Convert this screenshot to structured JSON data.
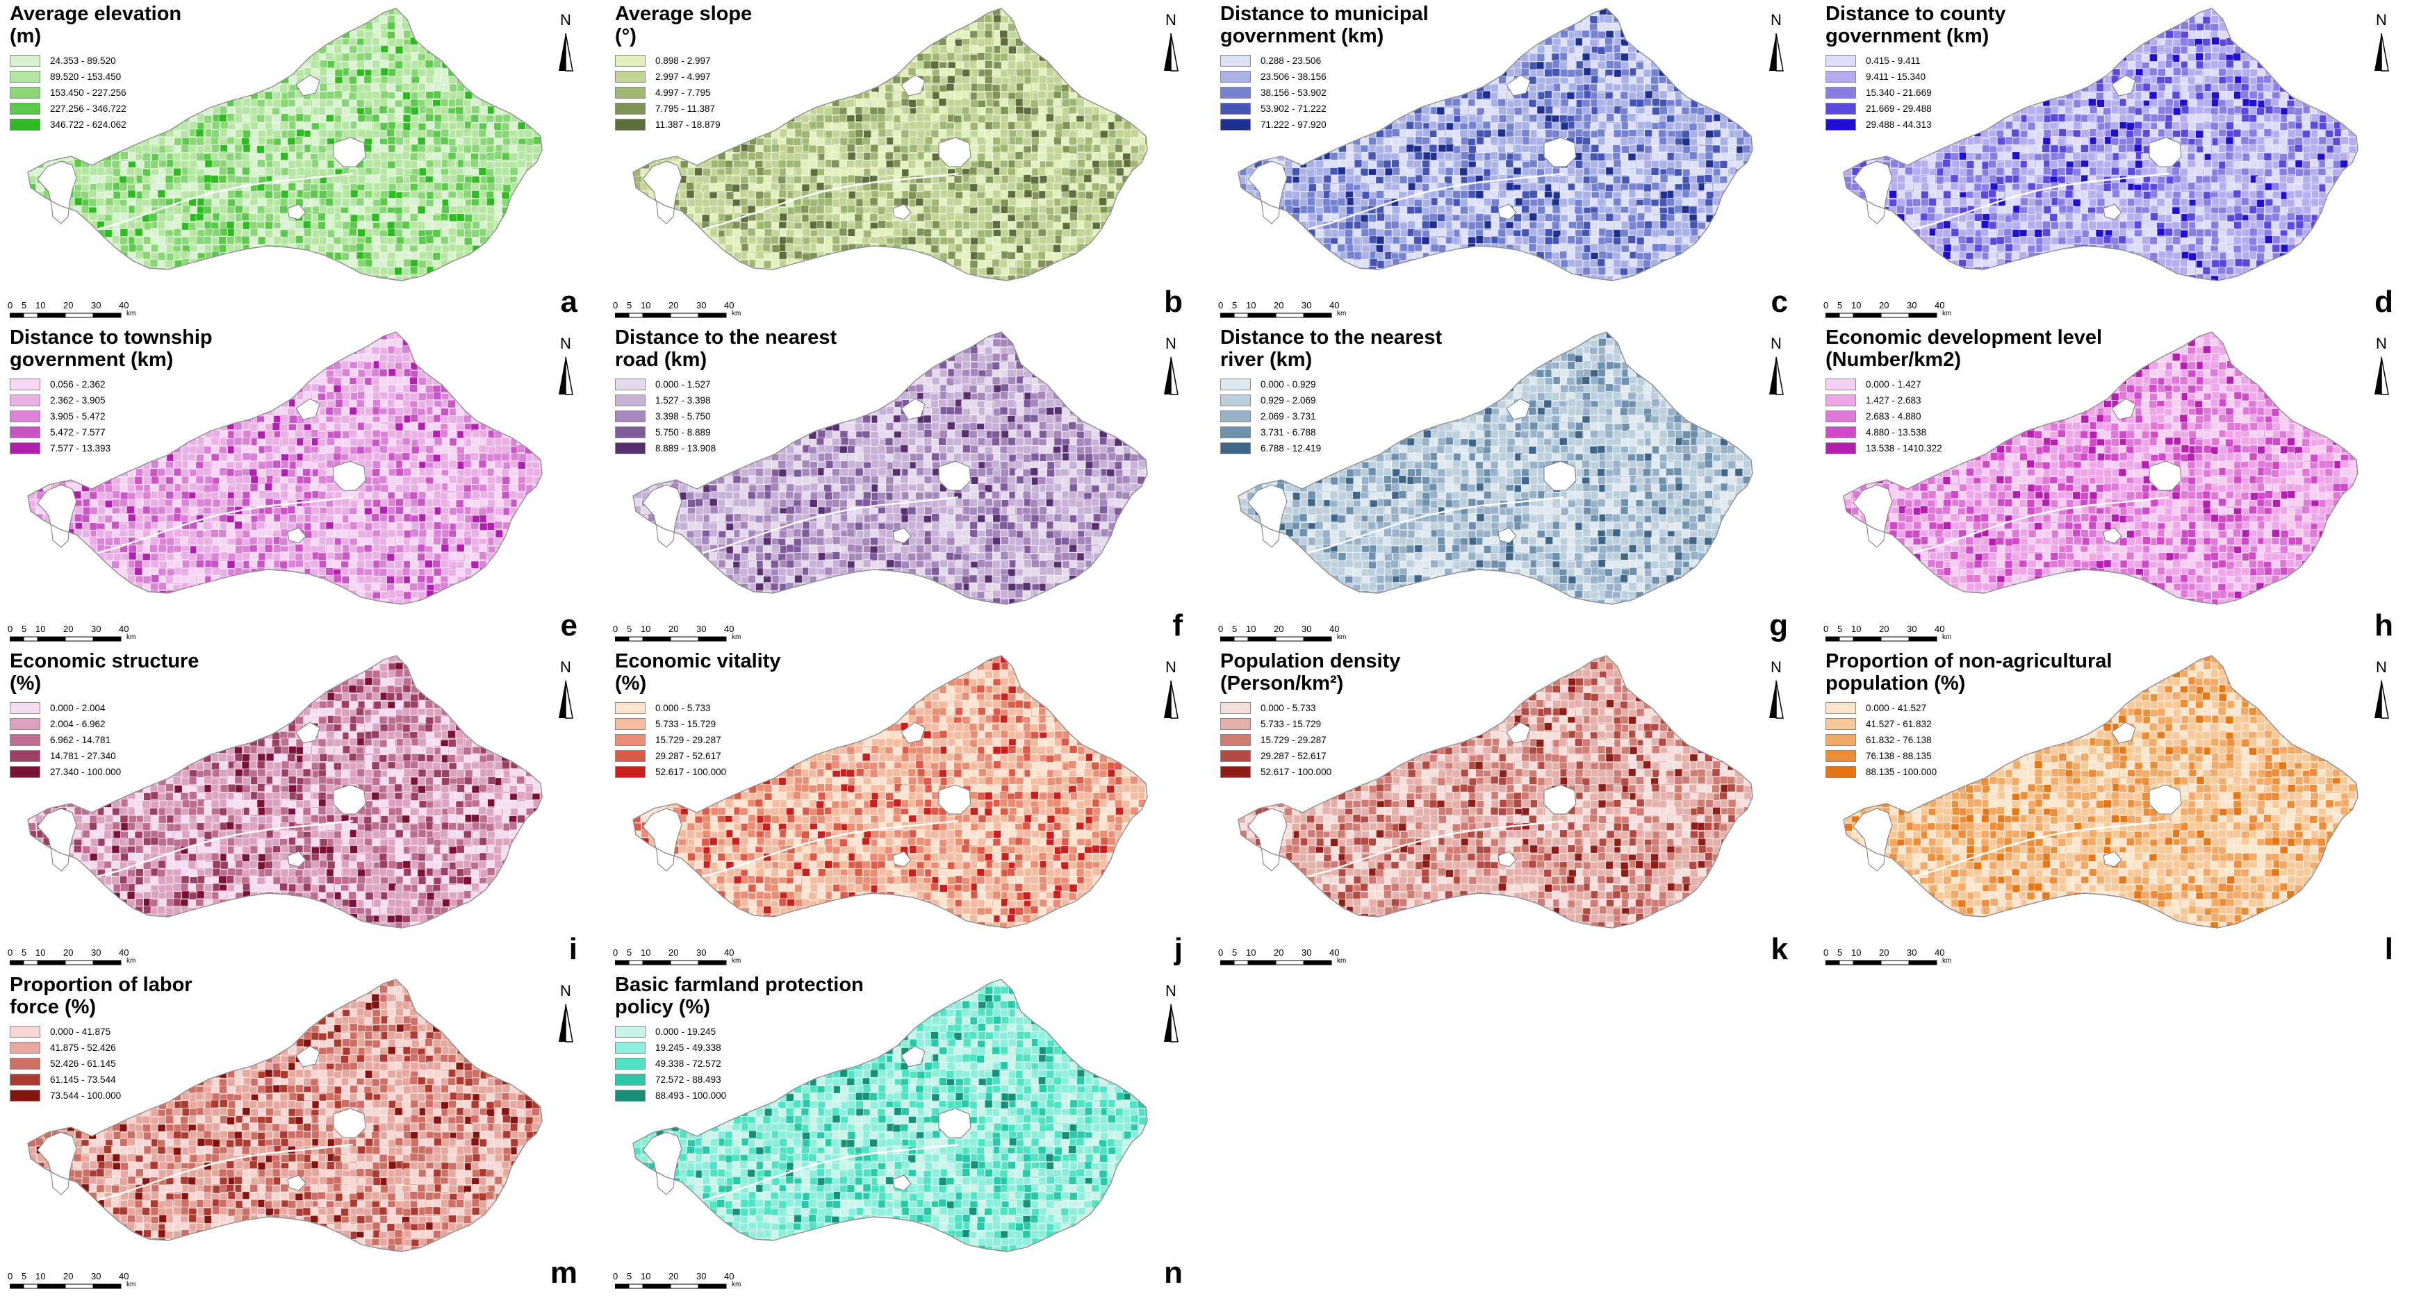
{
  "scale_bar": {
    "ticks": [
      "0",
      "5",
      "10",
      "20",
      "30",
      "40"
    ],
    "unit": "km"
  },
  "north_label": "N",
  "panels": [
    {
      "letter": "a",
      "title": "Average elevation\n(m)",
      "classes": [
        "24.353 - 89.520",
        "89.520 - 153.450",
        "153.450 - 227.256",
        "227.256 - 346.722",
        "346.722 - 624.062"
      ],
      "colors": [
        "#d9f2d0",
        "#b4e6a2",
        "#88d676",
        "#5cc84c",
        "#2ebb22"
      ]
    },
    {
      "letter": "b",
      "title": "Average slope\n(°)",
      "classes": [
        "0.898 - 2.997",
        "2.997 - 4.997",
        "4.997 - 7.795",
        "7.795 - 11.387",
        "11.387 - 18.879"
      ],
      "colors": [
        "#e4efbe",
        "#c2d596",
        "#a0b673",
        "#7f9356",
        "#5d6d3c"
      ]
    },
    {
      "letter": "c",
      "title": "Distance to municipal\ngovernment  (km)",
      "classes": [
        "0.288 - 23.506",
        "23.506 - 38.156",
        "38.156 - 53.902",
        "53.902 - 71.222",
        "71.222 - 97.920"
      ],
      "colors": [
        "#dde0f6",
        "#aab1e6",
        "#7582d0",
        "#4555b3",
        "#1e2f8e"
      ]
    },
    {
      "letter": "d",
      "title": "Distance to county\ngovernment  (km)",
      "classes": [
        "0.415 - 9.411",
        "9.411 - 15.340",
        "15.340 - 21.669",
        "21.669 - 29.488",
        "29.488 - 44.313"
      ],
      "colors": [
        "#dedbfb",
        "#b5adf0",
        "#8a7ee4",
        "#5b48de",
        "#1f0fd0"
      ]
    },
    {
      "letter": "e",
      "title": "Distance to township\ngovernment  (km)",
      "classes": [
        "0.056 - 2.362",
        "2.362 - 3.905",
        "3.905 - 5.472",
        "5.472 - 7.577",
        "7.577 - 13.393"
      ],
      "colors": [
        "#f6d6f4",
        "#eab0e6",
        "#da82d6",
        "#c955c4",
        "#b01fae"
      ]
    },
    {
      "letter": "f",
      "title": "Distance to the nearest\nroad  (km)",
      "classes": [
        "0.000 - 1.527",
        "1.527 - 3.398",
        "3.398 - 5.750",
        "5.750 - 8.889",
        "8.889 - 13.908"
      ],
      "colors": [
        "#e5d9ec",
        "#c7b1d6",
        "#a587bc",
        "#7f5b9c",
        "#58306f"
      ]
    },
    {
      "letter": "g",
      "title": "Distance to the nearest\nriver  (km)",
      "classes": [
        "0.000 - 0.929",
        "0.929 - 2.069",
        "2.069 - 3.731",
        "3.731 - 6.788",
        "6.788 - 12.419"
      ],
      "colors": [
        "#dfe8ee",
        "#bccfdd",
        "#97b2c8",
        "#6d90ad",
        "#3f6689"
      ]
    },
    {
      "letter": "h",
      "title": "Economic development level\n(Number/km2)",
      "classes": [
        "0.000 - 1.427",
        "1.427 - 2.683",
        "2.683 - 4.880",
        "4.880 - 13.538",
        "13.538 - 1410.322"
      ],
      "colors": [
        "#f6cff2",
        "#eea6e8",
        "#e078d8",
        "#d04ac8",
        "#b51eb1"
      ]
    },
    {
      "letter": "i",
      "title": "Economic structure\n (%)",
      "classes": [
        "0.000 - 2.004",
        "2.004 - 6.962",
        "6.962 - 14.781",
        "14.781 - 27.340",
        "27.340 - 100.000"
      ],
      "colors": [
        "#f5dcf0",
        "#dba3bf",
        "#bd6e8f",
        "#9a3f62",
        "#7a1235"
      ]
    },
    {
      "letter": "j",
      "title": "Economic vitality\n (%)",
      "classes": [
        "0.000 - 5.733",
        "5.733 - 15.729",
        "15.729 - 29.287",
        "29.287 - 52.617",
        "52.617 - 100.000"
      ],
      "colors": [
        "#fbe3cf",
        "#f3bba0",
        "#e98d74",
        "#dc5a48",
        "#c9201e"
      ]
    },
    {
      "letter": "k",
      "title": "Population density\n(Person/km²)",
      "classes": [
        "0.000 - 5.733",
        "5.733 - 15.729",
        "15.729 - 29.287",
        "29.287 - 52.617",
        "52.617 - 100.000"
      ],
      "colors": [
        "#f6dedc",
        "#e5b0aa",
        "#cf7d74",
        "#b04a42",
        "#8c1d17"
      ]
    },
    {
      "letter": "l",
      "title": "Proportion of non-agricultural\npopulation (%)",
      "classes": [
        "0.000 - 41.527",
        "41.527 - 61.832",
        "61.832 - 76.138",
        "76.138 - 88.135",
        "88.135 - 100.000"
      ],
      "colors": [
        "#fbe5cc",
        "#f7c898",
        "#f2aa66",
        "#ed8d38",
        "#e77614"
      ]
    },
    {
      "letter": "m",
      "title": "Proportion of labor\n force  (%)",
      "classes": [
        "0.000 - 41.875",
        "41.875 - 52.426",
        "52.426 - 61.145",
        "61.145 - 73.544",
        "73.544 - 100.000"
      ],
      "colors": [
        "#f6d7d4",
        "#e6a89e",
        "#cd6f64",
        "#ab3a31",
        "#851411"
      ]
    },
    {
      "letter": "n",
      "title": "Basic farmland protection\npolicy  (%)",
      "classes": [
        "0.000 - 19.245",
        "19.245 - 49.338",
        "49.338 - 72.572",
        "72.572 - 88.493",
        "88.493 - 100.000"
      ],
      "colors": [
        "#c8f4ea",
        "#8ceedb",
        "#4fe3c4",
        "#27c9a8",
        "#169077"
      ]
    }
  ]
}
